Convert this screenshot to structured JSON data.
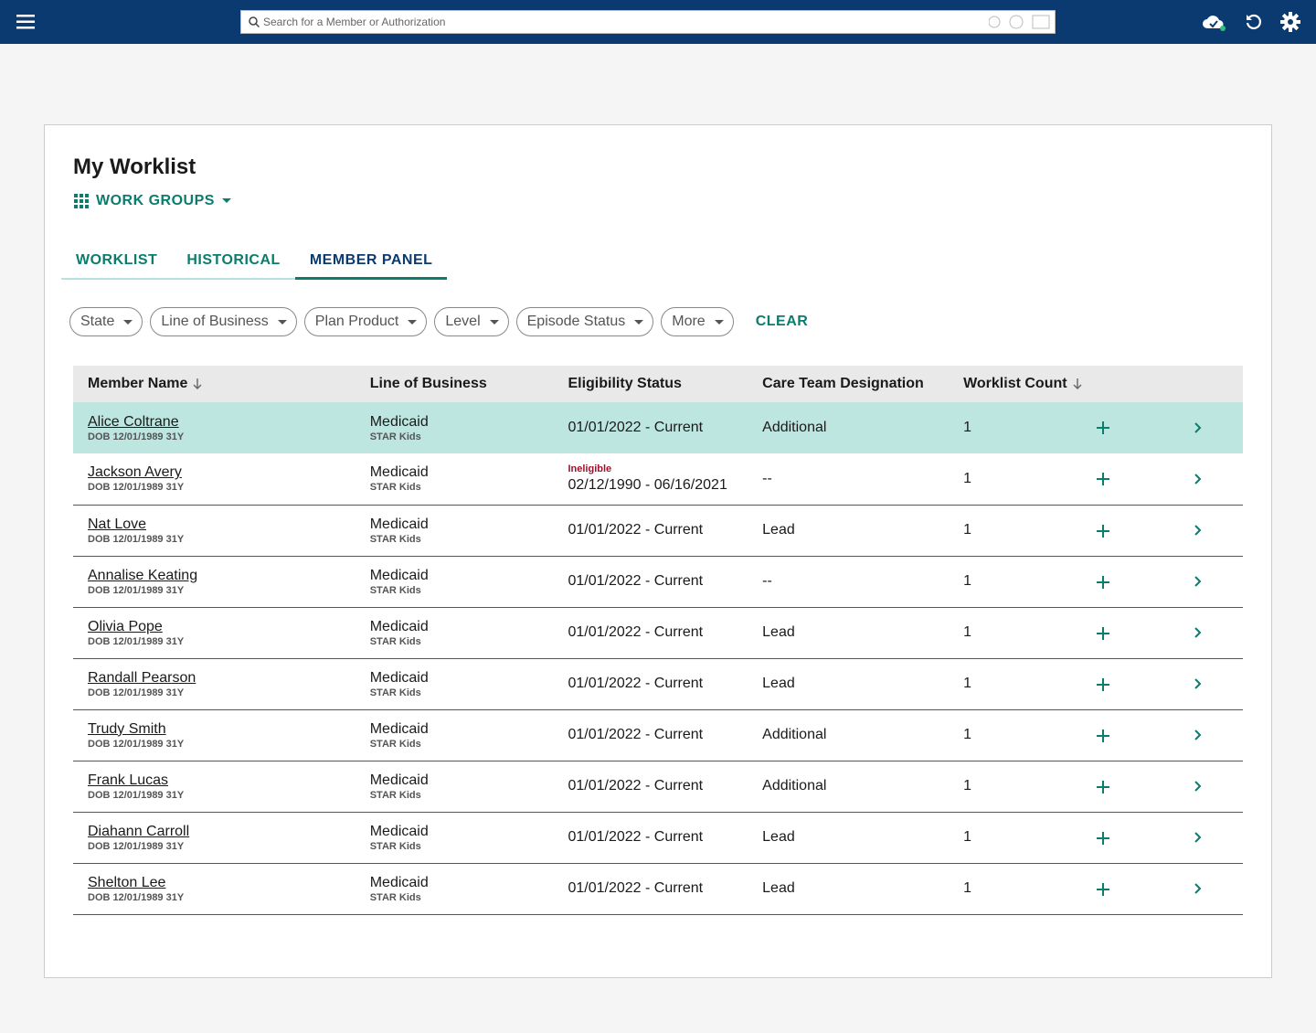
{
  "header": {
    "search_placeholder": "Search for a Member or Authorization"
  },
  "title": "My Worklist",
  "work_groups": "WORK GROUPS",
  "tabs": {
    "items": [
      "WORKLIST",
      "HISTORICAL",
      "MEMBER PANEL"
    ],
    "active": 2
  },
  "filters": {
    "items": [
      "State",
      "Line of Business",
      "Plan Product",
      "Level",
      "Episode Status",
      "More"
    ],
    "clear": "CLEAR"
  },
  "table": {
    "columns": [
      "Member Name",
      "Line of Business",
      "Eligibility Status",
      "Care Team Designation",
      "Worklist Count"
    ],
    "rows": [
      {
        "name": "Alice Coltrane",
        "dob": "DOB 12/01/1989 31Y",
        "lob": "Medicaid",
        "product": "STAR Kids",
        "eligibility": "01/01/2022 - Current",
        "care": "Additional",
        "count": 1
      },
      {
        "name": "Jackson Avery",
        "dob": "DOB 12/01/1989 31Y",
        "lob": "Medicaid",
        "product": "STAR Kids",
        "status": "Ineligible",
        "eligibility": "02/12/1990 - 06/16/2021",
        "care": "--",
        "count": 1
      },
      {
        "name": "Nat Love",
        "dob": "DOB 12/01/1989 31Y",
        "lob": "Medicaid",
        "product": "STAR Kids",
        "eligibility": "01/01/2022 - Current",
        "care": "Lead",
        "count": 1
      },
      {
        "name": "Annalise Keating",
        "dob": "DOB 12/01/1989 31Y",
        "lob": "Medicaid",
        "product": "STAR Kids",
        "eligibility": "01/01/2022 - Current",
        "care": "--",
        "count": 1
      },
      {
        "name": "Olivia Pope",
        "dob": "DOB 12/01/1989 31Y",
        "lob": "Medicaid",
        "product": "STAR Kids",
        "eligibility": "01/01/2022 - Current",
        "care": "Lead",
        "count": 1
      },
      {
        "name": "Randall Pearson",
        "dob": "DOB 12/01/1989 31Y",
        "lob": "Medicaid",
        "product": "STAR Kids",
        "eligibility": "01/01/2022 - Current",
        "care": "Lead",
        "count": 1
      },
      {
        "name": "Trudy Smith",
        "dob": "DOB 12/01/1989 31Y",
        "lob": "Medicaid",
        "product": "STAR Kids",
        "eligibility": "01/01/2022 - Current",
        "care": "Additional",
        "count": 1
      },
      {
        "name": "Frank Lucas",
        "dob": "DOB 12/01/1989 31Y",
        "lob": "Medicaid",
        "product": "STAR Kids",
        "eligibility": "01/01/2022 - Current",
        "care": "Additional",
        "count": 1
      },
      {
        "name": "Diahann Carroll",
        "dob": "DOB 12/01/1989 31Y",
        "lob": "Medicaid",
        "product": "STAR Kids",
        "eligibility": "01/01/2022 - Current",
        "care": "Lead",
        "count": 1
      },
      {
        "name": "Shelton Lee",
        "dob": "DOB 12/01/1989 31Y",
        "lob": "Medicaid",
        "product": "STAR Kids",
        "eligibility": "01/01/2022 - Current",
        "care": "Lead",
        "count": 1
      }
    ]
  }
}
